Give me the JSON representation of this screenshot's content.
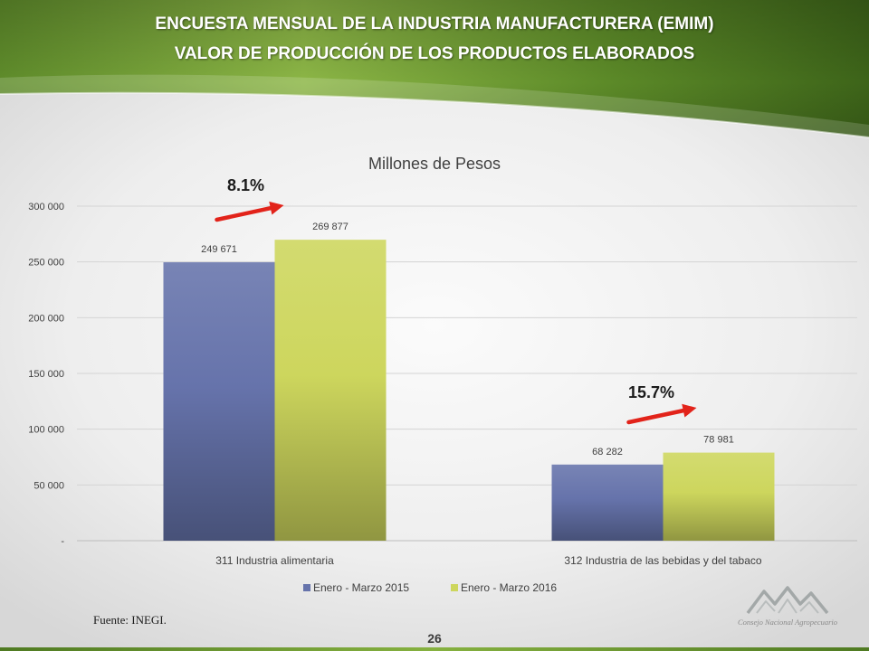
{
  "header": {
    "title_line1": "ENCUESTA MENSUAL DE LA INDUSTRIA MANUFACTURERA (EMIM)",
    "title_line2": "VALOR DE PRODUCCIÓN DE LOS PRODUCTOS ELABORADOS",
    "colors": {
      "banner_light": "#8cb646",
      "banner_dark": "#3d6419"
    }
  },
  "chart_data": {
    "type": "bar",
    "title": "Millones de Pesos",
    "categories": [
      "311 Industria alimentaria",
      "312 Industria de las bebidas y del tabaco"
    ],
    "series": [
      {
        "name": "Enero - Marzo 2015",
        "values": [
          249671,
          68282
        ],
        "labels": [
          "249 671",
          "68 282"
        ],
        "color": "#6673ab"
      },
      {
        "name": "Enero - Marzo 2016",
        "values": [
          269877,
          78981
        ],
        "labels": [
          "269 877",
          "78 981"
        ],
        "color": "#cdd65d"
      }
    ],
    "ylim": [
      0,
      300000
    ],
    "yticks": [
      0,
      50000,
      100000,
      150000,
      200000,
      250000,
      300000
    ],
    "ytick_labels": [
      "-",
      "50 000",
      "100 000",
      "150 000",
      "200 000",
      "250 000",
      "300 000"
    ],
    "grid": true,
    "legend": "bottom",
    "annotations": [
      {
        "text": "8.1%",
        "arrow_color": "#e2231a"
      },
      {
        "text": "15.7%",
        "arrow_color": "#e2231a"
      }
    ]
  },
  "footer": {
    "source": "Fuente: INEGI.",
    "page_number": "26",
    "logo_text": "Consejo Nacional Agropecuario"
  }
}
